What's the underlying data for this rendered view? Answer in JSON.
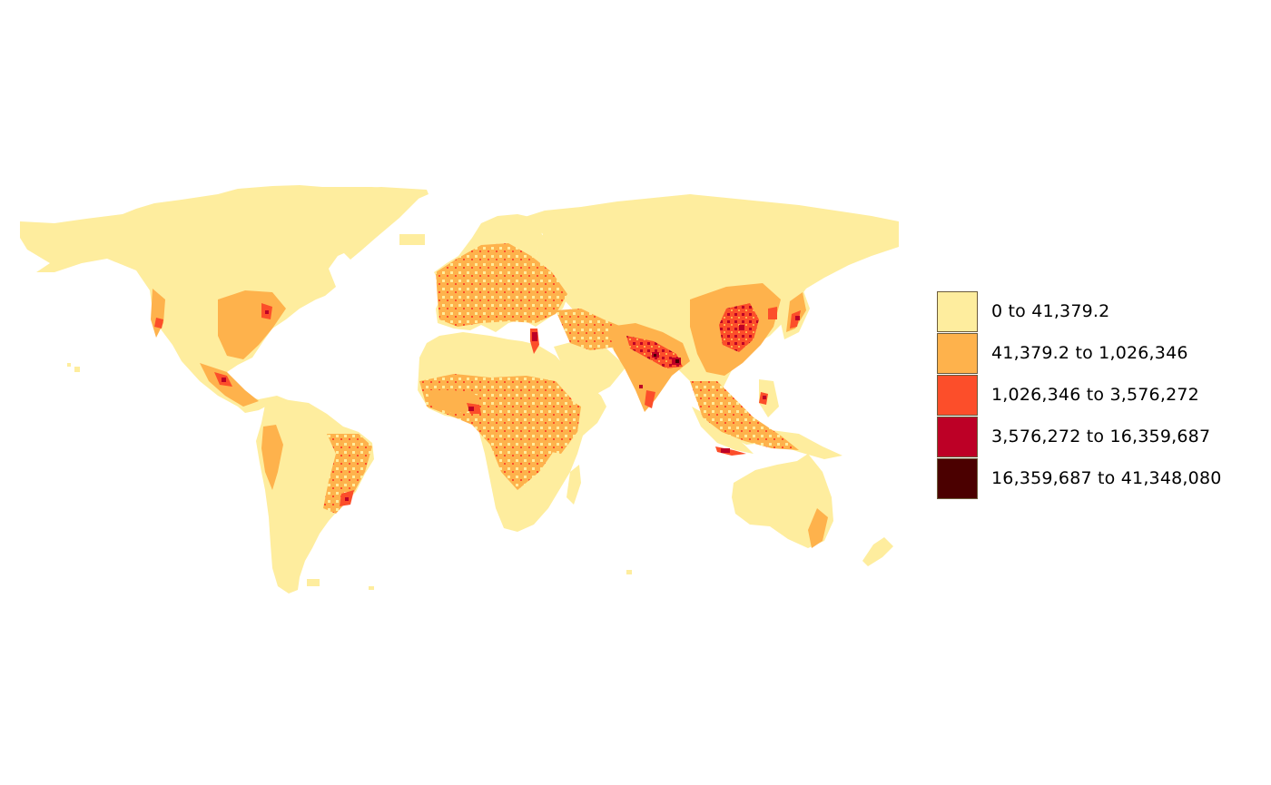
{
  "map": {
    "projection": "plate-carree",
    "background_color": "#ffffff",
    "palette": [
      "#FEED9E",
      "#FEB24C",
      "#FC4E2A",
      "#BD0026",
      "#4B0000"
    ]
  },
  "legend": {
    "items": [
      {
        "label": "0 to 41,379.2",
        "color": "#FEED9E"
      },
      {
        "label": "41,379.2 to 1,026,346",
        "color": "#FEB24C"
      },
      {
        "label": "1,026,346 to 3,576,272",
        "color": "#FC4E2A"
      },
      {
        "label": "3,576,272 to 16,359,687",
        "color": "#BD0026"
      },
      {
        "label": "16,359,687 to 41,348,080",
        "color": "#4B0000"
      }
    ]
  }
}
